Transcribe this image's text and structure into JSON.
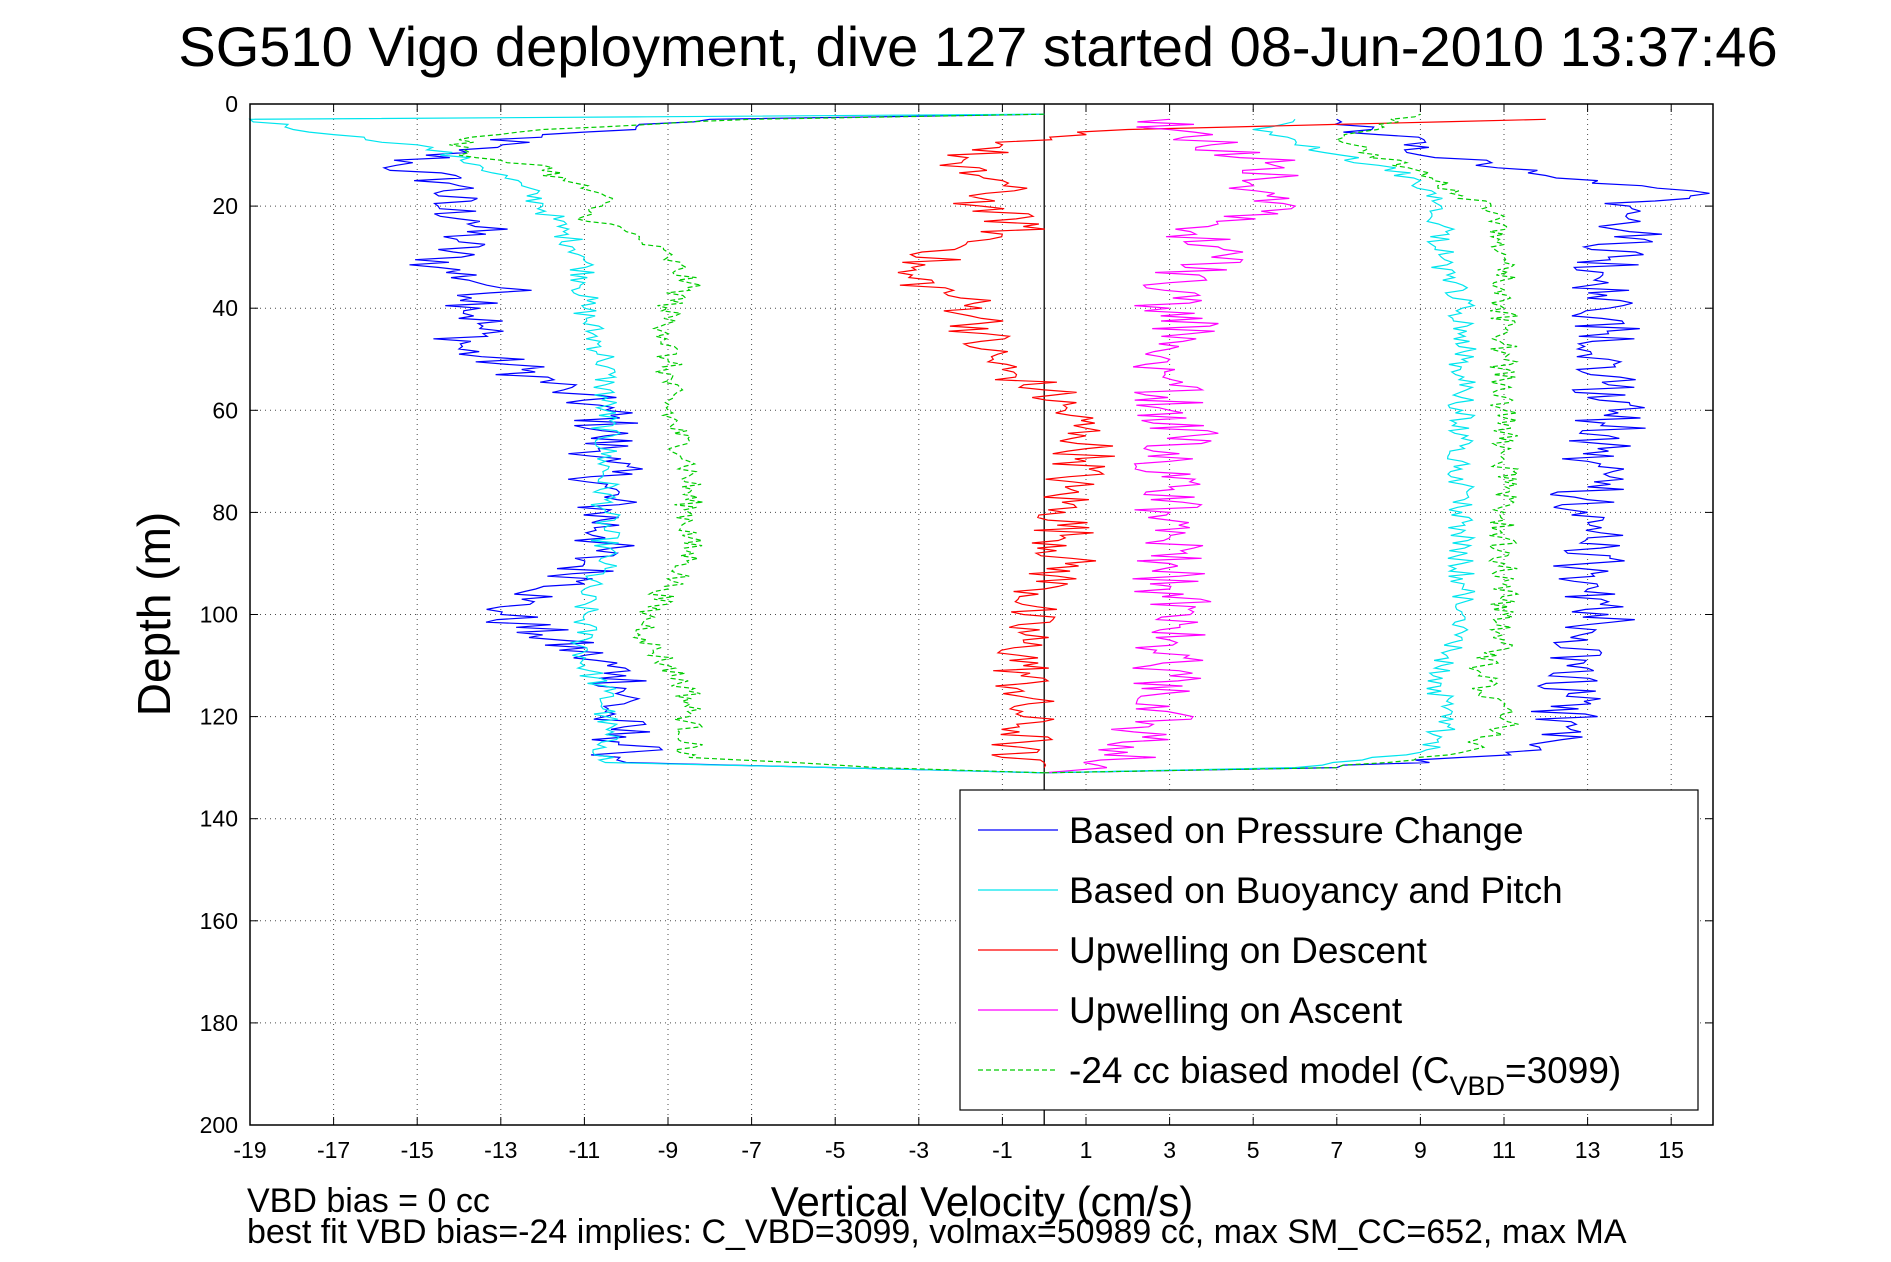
{
  "chart_data": {
    "type": "line",
    "title": "SG510 Vigo deployment, dive 127 started 08-Jun-2010 13:37:46",
    "xlabel": "Vertical Velocity (cm/s)",
    "ylabel": "Depth (m)",
    "xlim": [
      -19,
      16
    ],
    "ylim": [
      0,
      200
    ],
    "y_reversed": true,
    "grid": true,
    "x_ticks": [
      -19,
      -17,
      -15,
      -13,
      -11,
      -9,
      -7,
      -5,
      -3,
      -1,
      1,
      3,
      5,
      7,
      9,
      11,
      13,
      15
    ],
    "y_ticks": [
      0,
      20,
      40,
      60,
      80,
      100,
      120,
      140,
      160,
      180,
      200
    ],
    "zero_line_x": 0,
    "legend": {
      "placement": "bottom-right",
      "entries": [
        {
          "label": "Based on Pressure Change",
          "color": "#0000ff",
          "dashed": false
        },
        {
          "label": "Based on Buoyancy and Pitch",
          "color": "#00e5ee",
          "dashed": false
        },
        {
          "label": "Upwelling on Descent",
          "color": "#ff0000",
          "dashed": false
        },
        {
          "label": "Upwelling on Ascent",
          "color": "#ff00ff",
          "dashed": false
        },
        {
          "label_prefix": "-24 cc biased model (C",
          "label_sub": "VBD",
          "label_suffix": "=3099)",
          "color": "#00cc00",
          "dashed": true
        }
      ]
    },
    "series": [
      {
        "name": "Based on Pressure Change (descent)",
        "color": "#0000ff",
        "dashed": false,
        "jitter": 0.9,
        "points": [
          [
            0,
            2
          ],
          [
            -8,
            3
          ],
          [
            -12,
            6
          ],
          [
            -14,
            9
          ],
          [
            -15.5,
            12
          ],
          [
            -14,
            16
          ],
          [
            -14.5,
            20
          ],
          [
            -13.5,
            23
          ],
          [
            -14,
            27
          ],
          [
            -14.5,
            32
          ],
          [
            -13,
            36
          ],
          [
            -13.5,
            40
          ],
          [
            -13.5,
            44
          ],
          [
            -14,
            48
          ],
          [
            -12.5,
            52
          ],
          [
            -11.5,
            56
          ],
          [
            -10.5,
            60
          ],
          [
            -10.5,
            65
          ],
          [
            -10.5,
            70
          ],
          [
            -10.5,
            75
          ],
          [
            -10.5,
            80
          ],
          [
            -10.5,
            85
          ],
          [
            -11,
            90
          ],
          [
            -11,
            94
          ],
          [
            -12.5,
            97
          ],
          [
            -13,
            100
          ],
          [
            -12,
            104
          ],
          [
            -11,
            108
          ],
          [
            -10,
            112
          ],
          [
            -10,
            116
          ],
          [
            -10.5,
            120
          ],
          [
            -10,
            124
          ],
          [
            -10,
            127
          ],
          [
            -10,
            129
          ],
          [
            -5,
            130
          ],
          [
            0,
            131
          ]
        ]
      },
      {
        "name": "Based on Pressure Change (ascent)",
        "color": "#0000ff",
        "dashed": false,
        "jitter": 0.9,
        "points": [
          [
            0,
            131
          ],
          [
            7,
            130
          ],
          [
            10,
            128
          ],
          [
            12,
            125
          ],
          [
            12.5,
            122
          ],
          [
            12.5,
            116
          ],
          [
            12.5,
            110
          ],
          [
            13,
            105
          ],
          [
            13.5,
            100
          ],
          [
            13,
            95
          ],
          [
            13,
            90
          ],
          [
            13,
            85
          ],
          [
            13,
            80
          ],
          [
            13,
            75
          ],
          [
            13,
            70
          ],
          [
            13.5,
            65
          ],
          [
            13.5,
            60
          ],
          [
            13.5,
            55
          ],
          [
            13.5,
            50
          ],
          [
            13.5,
            45
          ],
          [
            13.5,
            40
          ],
          [
            13.5,
            35
          ],
          [
            13.5,
            30
          ],
          [
            14,
            25
          ],
          [
            14,
            20
          ],
          [
            15.5,
            17
          ],
          [
            12,
            14
          ],
          [
            9,
            10
          ],
          [
            8,
            6
          ],
          [
            7,
            3
          ]
        ]
      },
      {
        "name": "Based on Buoyancy and Pitch (descent)",
        "color": "#00e5ee",
        "dashed": false,
        "jitter": 0.35,
        "points": [
          [
            0,
            2
          ],
          [
            -19,
            3
          ],
          [
            -17,
            6
          ],
          [
            -15,
            8
          ],
          [
            -13.5,
            12
          ],
          [
            -12.5,
            16
          ],
          [
            -12,
            20
          ],
          [
            -11.5,
            25
          ],
          [
            -11,
            30
          ],
          [
            -11,
            35
          ],
          [
            -11,
            40
          ],
          [
            -10.8,
            45
          ],
          [
            -10.5,
            50
          ],
          [
            -10.5,
            55
          ],
          [
            -10.5,
            60
          ],
          [
            -10.5,
            70
          ],
          [
            -10.5,
            80
          ],
          [
            -10.5,
            90
          ],
          [
            -11,
            95
          ],
          [
            -11,
            100
          ],
          [
            -11,
            105
          ],
          [
            -11,
            110
          ],
          [
            -10.5,
            115
          ],
          [
            -10.5,
            120
          ],
          [
            -10.5,
            126
          ],
          [
            -10.5,
            129
          ],
          [
            -5,
            130
          ],
          [
            0,
            131
          ]
        ]
      },
      {
        "name": "Based on Buoyancy and Pitch (ascent)",
        "color": "#00e5ee",
        "dashed": false,
        "jitter": 0.35,
        "points": [
          [
            0,
            131
          ],
          [
            6,
            130
          ],
          [
            9,
            127
          ],
          [
            9.5,
            124
          ],
          [
            9.5,
            120
          ],
          [
            9.5,
            115
          ],
          [
            9.5,
            110
          ],
          [
            10,
            105
          ],
          [
            10,
            100
          ],
          [
            10,
            95
          ],
          [
            10,
            90
          ],
          [
            10,
            80
          ],
          [
            10,
            70
          ],
          [
            10,
            60
          ],
          [
            10,
            50
          ],
          [
            10,
            40
          ],
          [
            9.5,
            30
          ],
          [
            9.5,
            20
          ],
          [
            9,
            15
          ],
          [
            8,
            12
          ],
          [
            6,
            8
          ],
          [
            5,
            5
          ],
          [
            6,
            3
          ]
        ]
      },
      {
        "name": "Upwelling on Descent",
        "color": "#ff0000",
        "dashed": false,
        "jitter": 0.8,
        "points": [
          [
            12,
            3
          ],
          [
            7,
            4
          ],
          [
            2,
            5
          ],
          [
            -1,
            8
          ],
          [
            -2.5,
            12
          ],
          [
            -1,
            15
          ],
          [
            -1.5,
            20
          ],
          [
            -0.5,
            24
          ],
          [
            -2,
            28
          ],
          [
            -3.5,
            33
          ],
          [
            -2,
            38
          ],
          [
            -1.5,
            42
          ],
          [
            -1.5,
            48
          ],
          [
            -1,
            52
          ],
          [
            0,
            56
          ],
          [
            0.5,
            60
          ],
          [
            1,
            65
          ],
          [
            1,
            70
          ],
          [
            0.5,
            75
          ],
          [
            0.5,
            80
          ],
          [
            0.5,
            85
          ],
          [
            0.5,
            90
          ],
          [
            0,
            95
          ],
          [
            -0.5,
            100
          ],
          [
            -0.5,
            105
          ],
          [
            -0.5,
            110
          ],
          [
            -0.5,
            115
          ],
          [
            -0.5,
            120
          ],
          [
            -0.5,
            125
          ],
          [
            -1,
            128
          ],
          [
            0,
            130
          ]
        ]
      },
      {
        "name": "Upwelling on Ascent",
        "color": "#ff00ff",
        "dashed": false,
        "jitter": 0.9,
        "points": [
          [
            0,
            131
          ],
          [
            1.5,
            130
          ],
          [
            2,
            127
          ],
          [
            2.5,
            122
          ],
          [
            3,
            118
          ],
          [
            3,
            112
          ],
          [
            3,
            105
          ],
          [
            3.5,
            100
          ],
          [
            3,
            95
          ],
          [
            3,
            90
          ],
          [
            3,
            85
          ],
          [
            3,
            80
          ],
          [
            3,
            75
          ],
          [
            3,
            70
          ],
          [
            3.5,
            65
          ],
          [
            3,
            60
          ],
          [
            3,
            55
          ],
          [
            3,
            50
          ],
          [
            3.5,
            45
          ],
          [
            3,
            40
          ],
          [
            3,
            35
          ],
          [
            4,
            30
          ],
          [
            3.5,
            25
          ],
          [
            6,
            20
          ],
          [
            5,
            16
          ],
          [
            5.5,
            12
          ],
          [
            4,
            8
          ],
          [
            3,
            5
          ],
          [
            3,
            3
          ]
        ]
      },
      {
        "name": "-24 cc biased model (descent)",
        "color": "#00cc00",
        "dashed": true,
        "jitter": 0.35,
        "points": [
          [
            0,
            2
          ],
          [
            -7,
            3
          ],
          [
            -12,
            5
          ],
          [
            -14,
            7
          ],
          [
            -14,
            10
          ],
          [
            -12,
            12
          ],
          [
            -11.5,
            15
          ],
          [
            -10.5,
            18
          ],
          [
            -11,
            22
          ],
          [
            -10,
            25
          ],
          [
            -9,
            30
          ],
          [
            -8.5,
            35
          ],
          [
            -9,
            40
          ],
          [
            -9,
            45
          ],
          [
            -9,
            50
          ],
          [
            -9,
            60
          ],
          [
            -8.5,
            70
          ],
          [
            -8.5,
            80
          ],
          [
            -8.5,
            90
          ],
          [
            -9,
            95
          ],
          [
            -9.5,
            100
          ],
          [
            -9.5,
            105
          ],
          [
            -9,
            110
          ],
          [
            -8.5,
            115
          ],
          [
            -8.5,
            120
          ],
          [
            -8.5,
            128
          ],
          [
            -4,
            130
          ],
          [
            0,
            131
          ]
        ]
      },
      {
        "name": "-24 cc biased model (ascent)",
        "color": "#00cc00",
        "dashed": true,
        "jitter": 0.35,
        "points": [
          [
            0,
            131
          ],
          [
            7,
            130
          ],
          [
            10,
            127
          ],
          [
            11,
            122
          ],
          [
            11,
            118
          ],
          [
            10.5,
            115
          ],
          [
            10.5,
            110
          ],
          [
            11,
            105
          ],
          [
            11,
            100
          ],
          [
            11,
            90
          ],
          [
            11,
            80
          ],
          [
            11,
            70
          ],
          [
            11,
            60
          ],
          [
            11,
            55
          ],
          [
            11,
            50
          ],
          [
            11,
            45
          ],
          [
            11,
            40
          ],
          [
            11,
            30
          ],
          [
            11,
            22
          ],
          [
            10,
            18
          ],
          [
            9,
            14
          ],
          [
            8,
            10
          ],
          [
            7,
            7
          ],
          [
            8,
            4
          ],
          [
            9,
            2
          ]
        ]
      }
    ],
    "footer_lines": [
      "VBD bias = 0 cc",
      "best fit VBD bias=-24 implies: C_VBD=3099, volmax=50989 cc, max SM_CC=652, max MA"
    ]
  }
}
